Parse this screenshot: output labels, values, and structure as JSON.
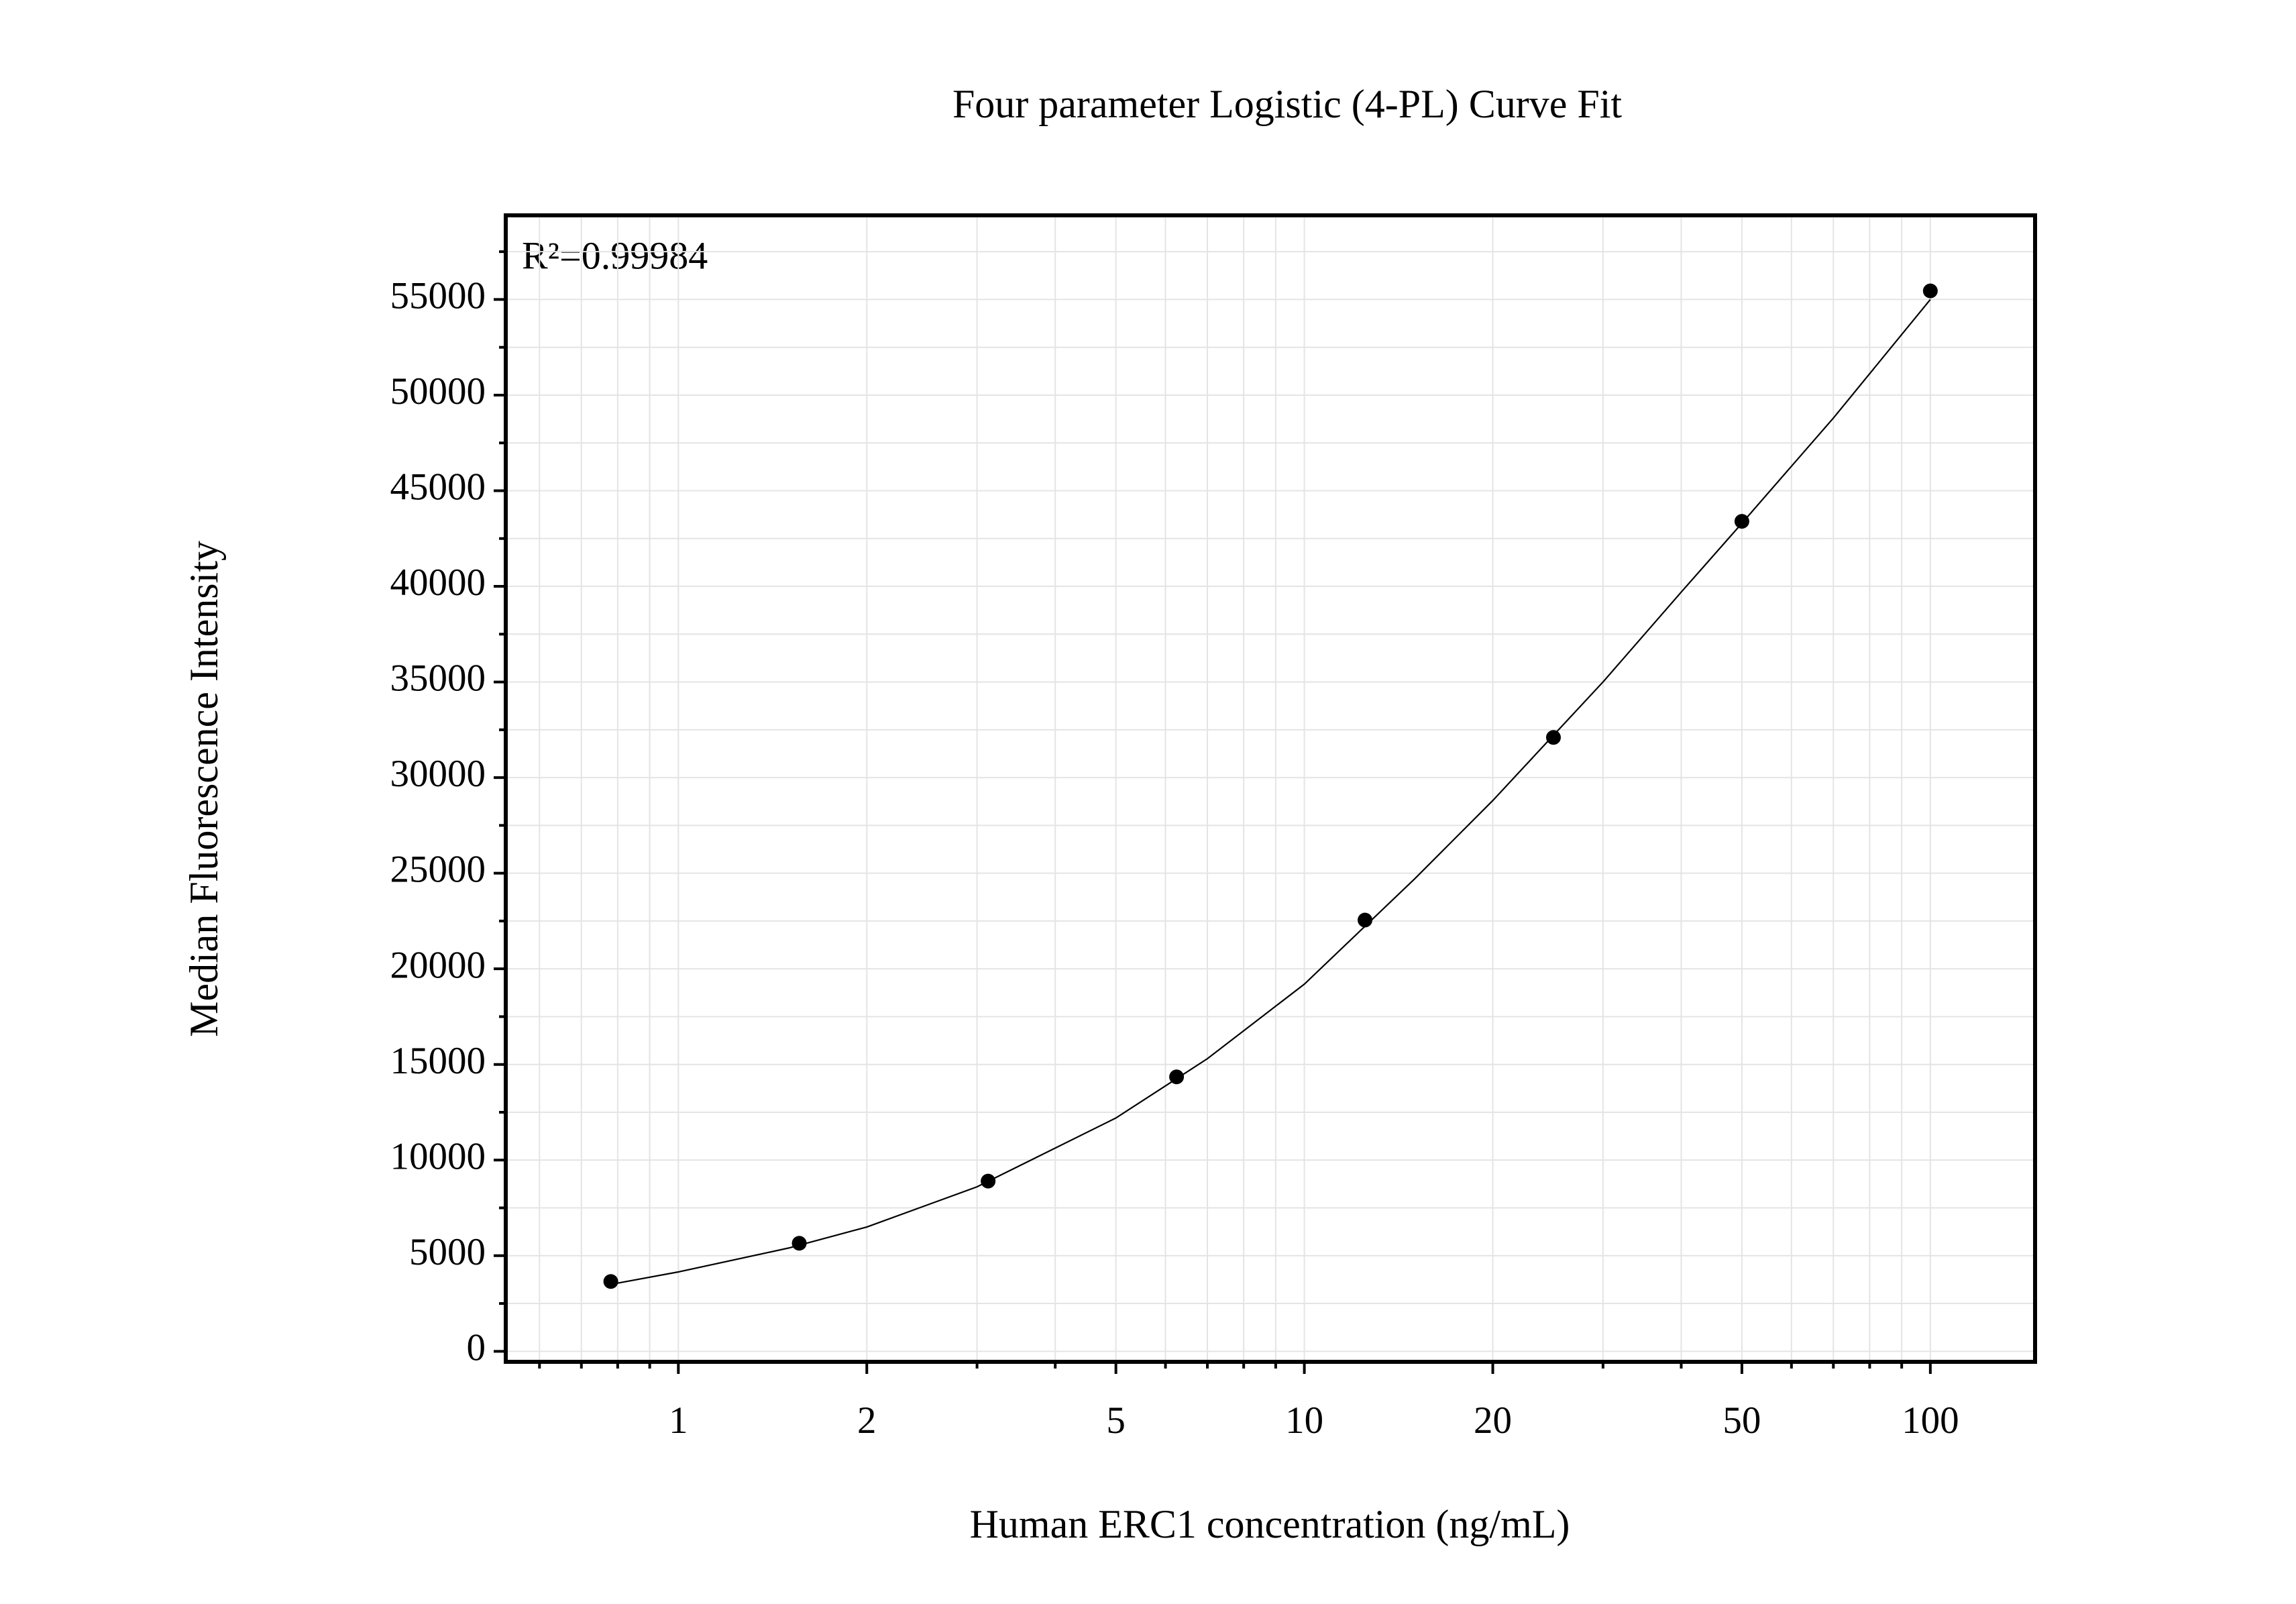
{
  "chart_data": {
    "type": "scatter",
    "title": "Four parameter Logistic (4-PL) Curve Fit",
    "x_label": "Human ERC1 concentration (ng/mL)",
    "y_label": "Median Fluorescence Intensity",
    "annotation": "R²=0.99984",
    "x_log": true,
    "grid": true,
    "xlim": [
      0.53,
      147
    ],
    "ylim": [
      -550,
      59400
    ],
    "xticks": [
      1,
      2,
      5,
      10,
      20,
      50,
      100
    ],
    "xminor": [
      0.6,
      0.7,
      0.8,
      0.9,
      3,
      4,
      6,
      7,
      8,
      9,
      30,
      40,
      60,
      70,
      80,
      90
    ],
    "yticks": [
      0,
      5000,
      10000,
      15000,
      20000,
      25000,
      30000,
      35000,
      40000,
      45000,
      50000,
      55000
    ],
    "yminor": [
      2500,
      7500,
      12500,
      17500,
      22500,
      27500,
      32500,
      37500,
      42500,
      47500,
      52500,
      57500
    ],
    "series": [
      {
        "type": "scatter",
        "color": "#000000",
        "x": [
          0.78,
          1.56,
          3.125,
          6.25,
          12.5,
          25,
          50,
          100
        ],
        "values": [
          3650,
          5650,
          8900,
          14350,
          22550,
          32100,
          43400,
          55450
        ]
      },
      {
        "type": "line",
        "color": "#000000",
        "x": [
          0.78,
          1,
          1.5,
          2,
          3,
          5,
          7,
          10,
          15,
          20,
          30,
          40,
          50,
          70,
          100
        ],
        "values": [
          3500,
          4150,
          5400,
          6500,
          8600,
          12200,
          15300,
          19200,
          24700,
          28800,
          35000,
          39700,
          43300,
          48800,
          55000
        ]
      }
    ]
  }
}
